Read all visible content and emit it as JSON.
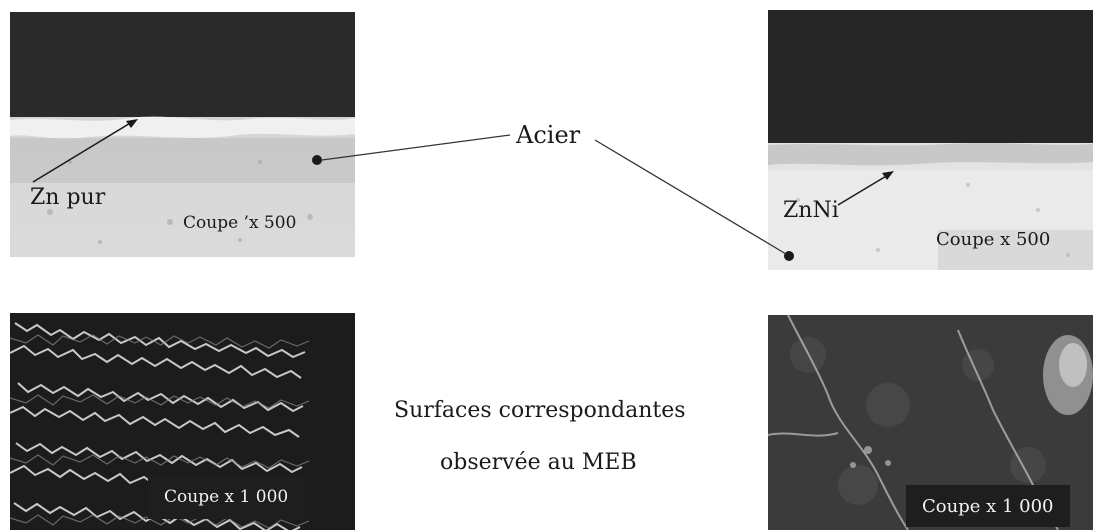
{
  "center_label": "Acier",
  "panels": {
    "zn_cross_section": {
      "annotation": "Zn pur",
      "caption": "Coupe ’x 500"
    },
    "znni_cross_section": {
      "annotation": "ZnNi",
      "caption": "Coupe x 500"
    },
    "zn_surface": {
      "caption": "Coupe x 1 000"
    },
    "znni_surface": {
      "caption": "Coupe x 1 000"
    }
  },
  "middle_caption": {
    "line1": "Surfaces correspondantes",
    "line2": "observée au MEB"
  }
}
